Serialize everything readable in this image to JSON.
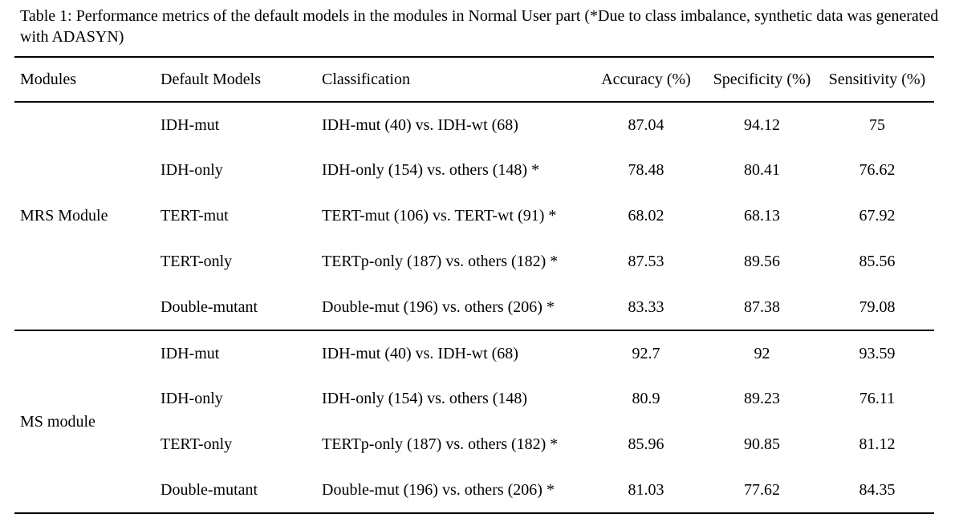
{
  "caption": {
    "line1": "Table 1: Performance metrics of the default models in the modules in Normal User part (*Due to class imbalance, synthetic data was generated",
    "line2": "with ADASYN)"
  },
  "table": {
    "columns": [
      "Modules",
      "Default Models",
      "Classification",
      "Accuracy (%)",
      "Specificity (%)",
      "Sensitivity (%)"
    ],
    "sections": [
      {
        "module": "MRS Module",
        "rows": [
          {
            "model": "IDH-mut",
            "classification": "IDH-mut (40) vs. IDH-wt (68)",
            "accuracy": "87.04",
            "specificity": "94.12",
            "sensitivity": "75"
          },
          {
            "model": "IDH-only",
            "classification": "IDH-only (154) vs. others (148) *",
            "accuracy": "78.48",
            "specificity": "80.41",
            "sensitivity": "76.62"
          },
          {
            "model": "TERT-mut",
            "classification": "TERT-mut (106) vs. TERT-wt (91) *",
            "accuracy": "68.02",
            "specificity": "68.13",
            "sensitivity": "67.92"
          },
          {
            "model": "TERT-only",
            "classification": "TERTp-only (187) vs. others (182) *",
            "accuracy": "87.53",
            "specificity": "89.56",
            "sensitivity": "85.56"
          },
          {
            "model": "Double-mutant",
            "classification": "Double-mut (196) vs. others (206) *",
            "accuracy": "83.33",
            "specificity": "87.38",
            "sensitivity": "79.08"
          }
        ]
      },
      {
        "module": "MS module",
        "rows": [
          {
            "model": "IDH-mut",
            "classification": "IDH-mut (40) vs. IDH-wt (68)",
            "accuracy": "92.7",
            "specificity": "92",
            "sensitivity": "93.59"
          },
          {
            "model": "IDH-only",
            "classification": "IDH-only (154) vs. others (148)",
            "accuracy": "80.9",
            "specificity": "89.23",
            "sensitivity": "76.11"
          },
          {
            "model": "TERT-only",
            "classification": "TERTp-only (187) vs. others (182) *",
            "accuracy": "85.96",
            "specificity": "90.85",
            "sensitivity": "81.12"
          },
          {
            "model": "Double-mutant",
            "classification": "Double-mut (196) vs. others (206) *",
            "accuracy": "81.03",
            "specificity": "77.62",
            "sensitivity": "84.35"
          }
        ]
      }
    ]
  },
  "colors": {
    "text": "#000000",
    "background": "#ffffff",
    "rule": "#000000"
  }
}
